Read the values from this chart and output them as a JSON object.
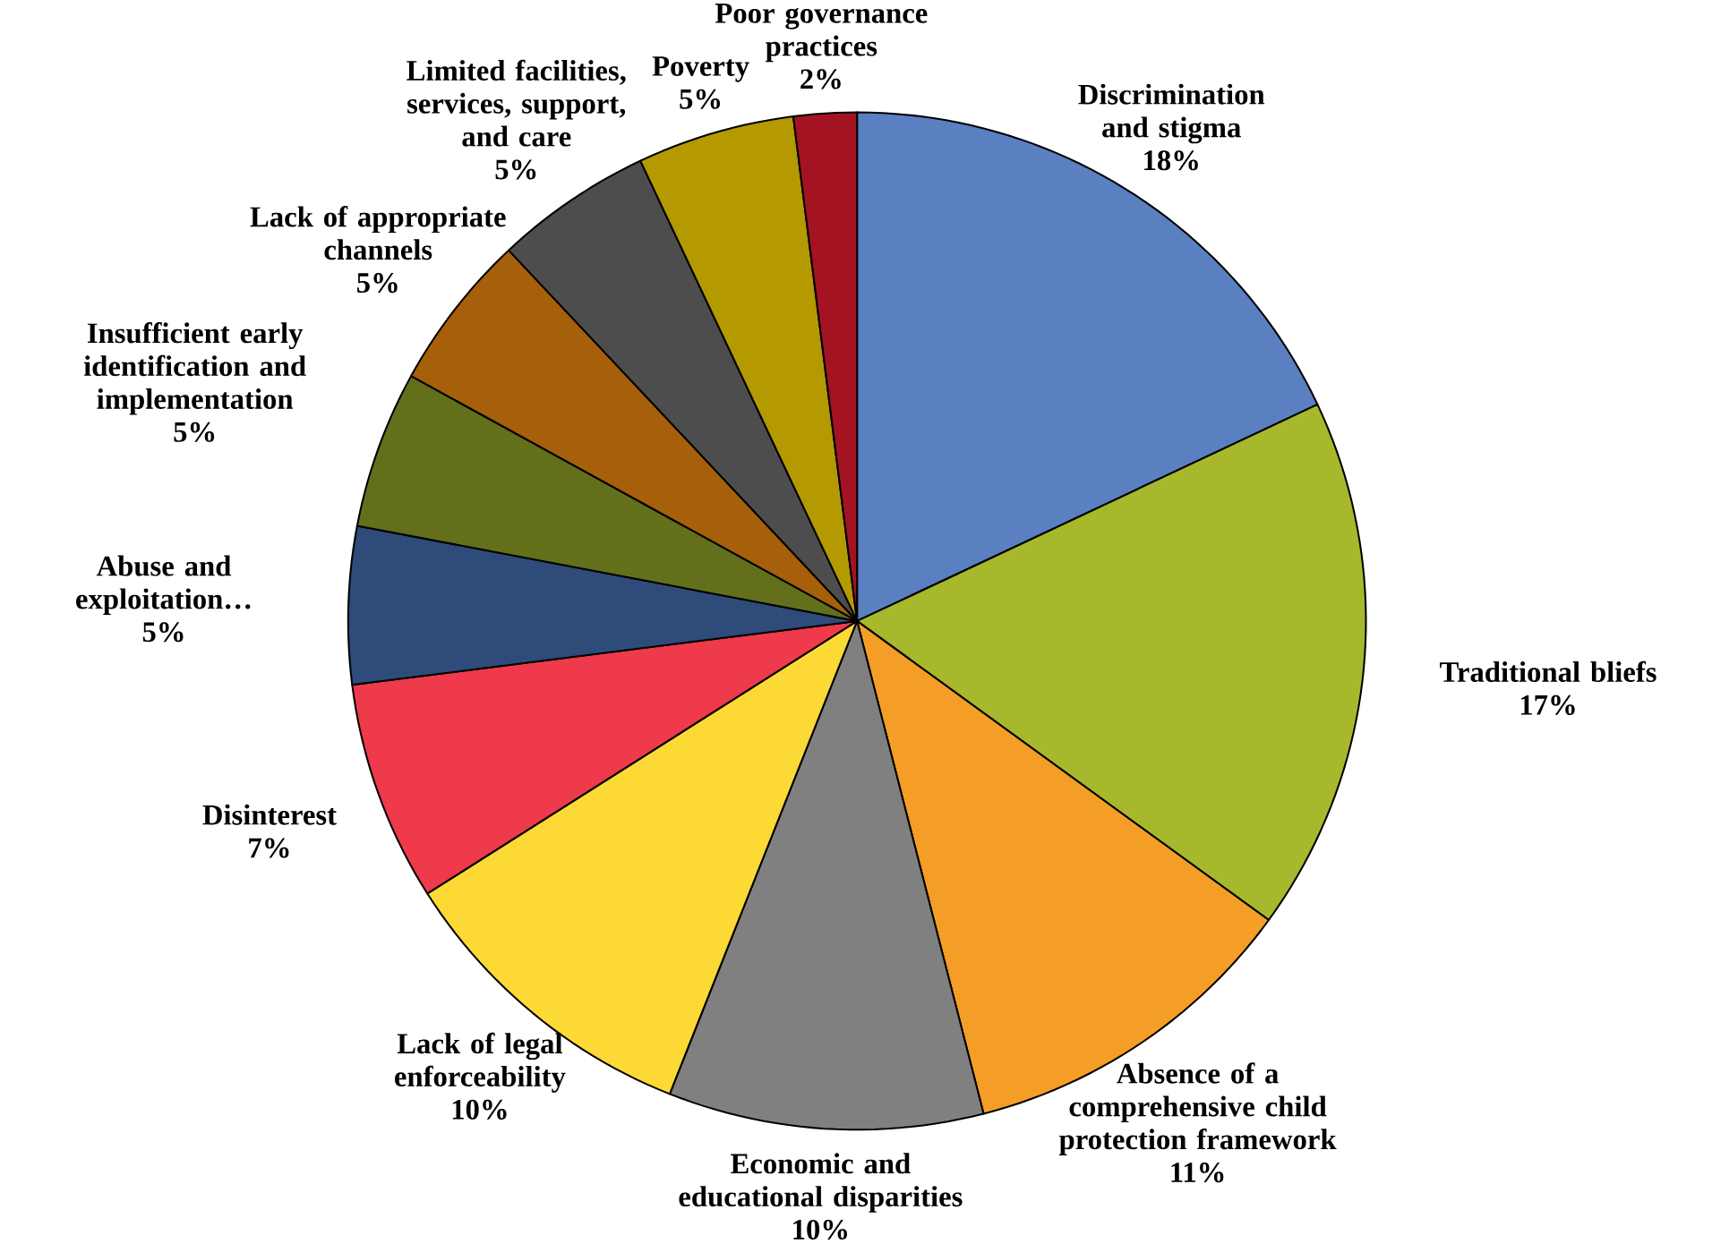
{
  "chart_data": {
    "type": "pie",
    "categories": [
      "Discrimination and stigma",
      "Traditional bliefs",
      "Absence of a comprehensive child protection framework",
      "Economic and educational disparities",
      "Lack of legal enforceability",
      "Disinterest",
      "Abuse and exploitation…",
      "Insufficient early identification and implementation",
      "Lack of appropriate channels",
      "Limited facilities, services, support, and care",
      "Poverty",
      "Poor governance practices"
    ],
    "values": [
      18,
      17,
      11,
      10,
      10,
      7,
      5,
      5,
      5,
      5,
      5,
      2
    ],
    "value_labels": [
      "18%",
      "17%",
      "11%",
      "10%",
      "10%",
      "7%",
      "5%",
      "5%",
      "5%",
      "5%",
      "5%",
      "2%"
    ],
    "colors": [
      "#5a80c1",
      "#a8b82c",
      "#f59e27",
      "#808080",
      "#fdd935",
      "#ee3a4b",
      "#2e4b7a",
      "#636f1a",
      "#a65f0a",
      "#4d4d4d",
      "#b49900",
      "#a31322"
    ]
  }
}
